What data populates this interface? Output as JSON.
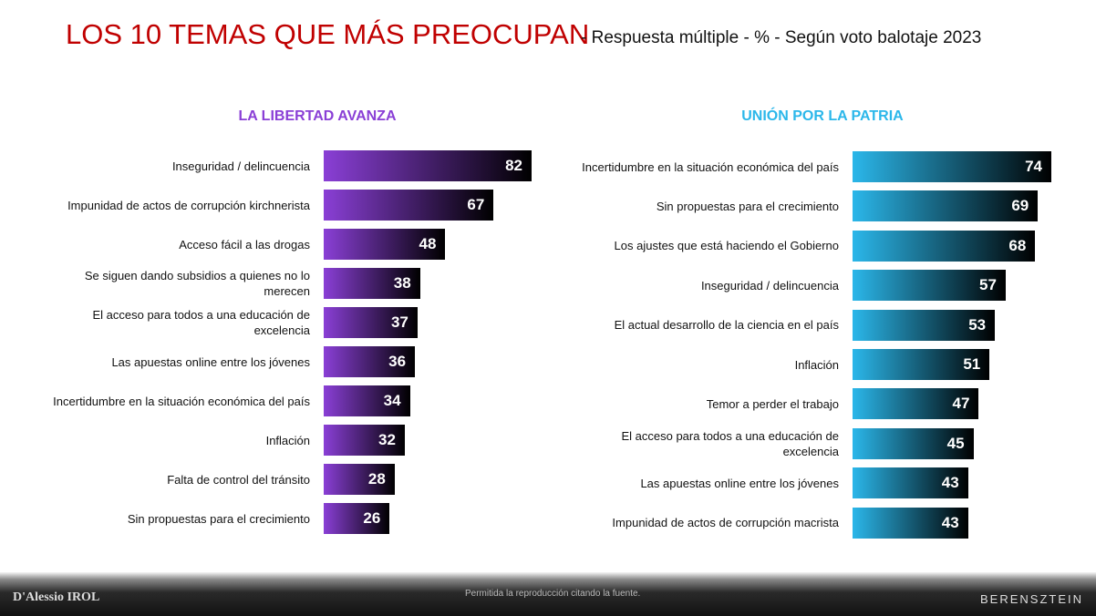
{
  "title": "LOS 10 TEMAS QUE MÁS PREOCUPAN",
  "subtitle": "- Respuesta múltiple - % - Según voto balotaje 2023",
  "chart_data": [
    {
      "type": "bar",
      "title": "LA LIBERTAD AVANZA",
      "color": "#8a3fd6",
      "categories": [
        "Inseguridad / delincuencia",
        "Impunidad de actos de corrupción kirchnerista",
        "Acceso fácil a las drogas",
        "Se siguen dando subsidios a quienes no lo merecen",
        "El acceso para todos a una educación de excelencia",
        "Las apuestas online entre los jóvenes",
        "Incertidumbre en la situación económica del país",
        "Inflación",
        "Falta de control del tránsito",
        "Sin propuestas para el crecimiento"
      ],
      "values": [
        82,
        67,
        48,
        38,
        37,
        36,
        34,
        32,
        28,
        26
      ]
    },
    {
      "type": "bar",
      "title": "UNIÓN POR LA PATRIA",
      "color": "#2bb7ea",
      "categories": [
        "Incertidumbre en la situación económica del país",
        "Sin propuestas para el crecimiento",
        "Los ajustes que está haciendo el Gobierno",
        "Inseguridad / delincuencia",
        "El actual desarrollo de la ciencia en el país",
        "Inflación",
        "Temor a perder el trabajo",
        "El acceso para todos a una educación de excelencia",
        "Las apuestas online entre los jóvenes",
        "Impunidad de actos de corrupción macrista"
      ],
      "values": [
        74,
        69,
        68,
        57,
        53,
        51,
        47,
        45,
        43,
        43
      ]
    }
  ],
  "footer": {
    "left": "D'Alessio IROL",
    "center": "Permitida la reproducción citando la fuente.",
    "right": "BERENSZTEIN"
  }
}
